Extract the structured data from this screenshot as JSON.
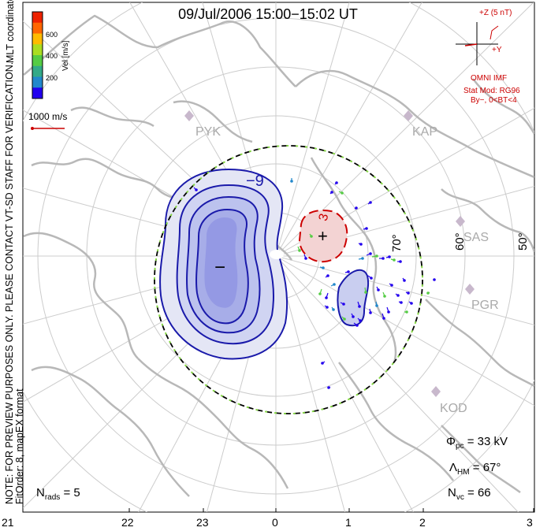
{
  "title": "09/Jul/2006 15:00−15:02 UT",
  "side_note": {
    "line1": "NOTE: FOR PREVIEW PURPOSES ONLY. PLEASE CONTACT VT-SD STAFF FOR VERIFICATION.",
    "line2": "FitOrder: 8,  mapEX format"
  },
  "coord_label": "MLT coordinates",
  "colorbar": {
    "label": "Vel [m/s]",
    "ticks": [
      "600",
      "400",
      "200"
    ],
    "colors": [
      "#2200ee",
      "#2288cc",
      "#33aa88",
      "#55cc44",
      "#aadd22",
      "#ffbb00",
      "#ff6600",
      "#ee2200"
    ]
  },
  "vector_scale": "1000 m/s",
  "imf": {
    "z_label": "+Z (5 nT)",
    "y_label": "+Y",
    "source": "OMNI IMF",
    "model": "Stat Mod: RG96",
    "condition": "By−, 0<BT<4",
    "color": "#cc0000"
  },
  "stations": [
    "PYK",
    "KAP",
    "SAS",
    "PGR",
    "KOD"
  ],
  "lat_labels": [
    "70°",
    "60°",
    "50°"
  ],
  "contours": {
    "neg_label": "−9",
    "pos_label": "3",
    "min_sign": "−",
    "max_sign": "+"
  },
  "stats": {
    "phi_sym": "Φ",
    "phi_sub": "pc",
    "phi_val": "= 33 kV",
    "lam_sym": "Λ",
    "lam_sub": "HM",
    "lam_val": "= 67°",
    "nvc_sym": "N",
    "nvc_sub": "vc",
    "nvc_val": "= 66",
    "nrad_sym": "N",
    "nrad_sub": "rads",
    "nrad_val": "= 5"
  },
  "mlt_labels": [
    "21",
    "22",
    "23",
    "0",
    "1",
    "2",
    "3"
  ],
  "colors": {
    "negative": "#1a1aaa",
    "positive": "#cc0000",
    "land": "#b8b8b8",
    "grid": "#cccccc",
    "boundary_a": "#000000",
    "boundary_b": "#88dd44"
  }
}
